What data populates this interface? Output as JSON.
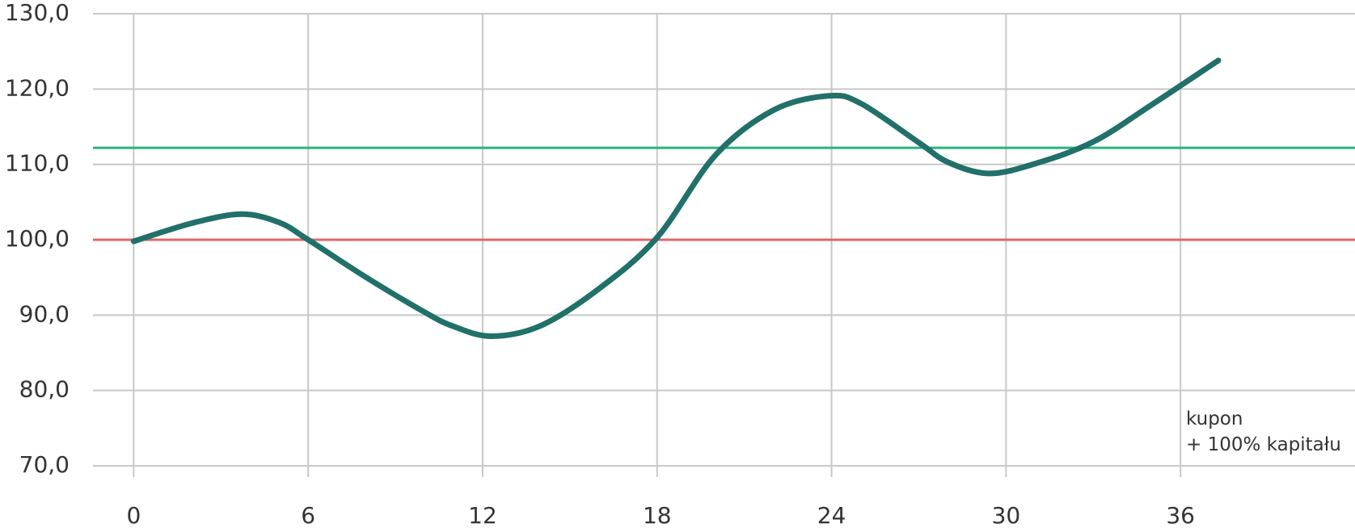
{
  "chart_data": {
    "type": "line",
    "x": [
      0,
      2,
      3.7,
      5,
      6,
      8,
      10,
      11,
      12.3,
      14,
      16,
      18,
      20,
      22,
      23.9,
      25,
      27,
      28,
      29.4,
      31,
      33,
      35,
      37.3
    ],
    "values": [
      99.8,
      102.2,
      103.4,
      102.3,
      100,
      95.0,
      90.4,
      88.5,
      87.2,
      88.6,
      93.5,
      100.3,
      111.2,
      117.2,
      119.1,
      118.1,
      112.9,
      110.3,
      108.8,
      110.1,
      113.0,
      117.9,
      123.8
    ],
    "color": "#21706a",
    "xlim": [
      -1.4,
      42
    ],
    "xticks": [
      0,
      6,
      12,
      18,
      24,
      30,
      36
    ],
    "ylim": [
      70,
      130
    ],
    "yticks": [
      {
        "value": 70,
        "label": "70,0"
      },
      {
        "value": 80,
        "label": "80,0"
      },
      {
        "value": 90,
        "label": "90,0"
      },
      {
        "value": 100,
        "label": "100,0"
      },
      {
        "value": 110,
        "label": "110,0"
      },
      {
        "value": 120,
        "label": "120,0"
      },
      {
        "value": 130,
        "label": "130,0"
      }
    ],
    "grid": true,
    "reference_lines": [
      {
        "value": 112.2,
        "color": "#2bb37c"
      },
      {
        "value": 100,
        "color": "#e06666"
      }
    ],
    "annotation": [
      "kupon",
      "+ 100% kapitału"
    ]
  }
}
